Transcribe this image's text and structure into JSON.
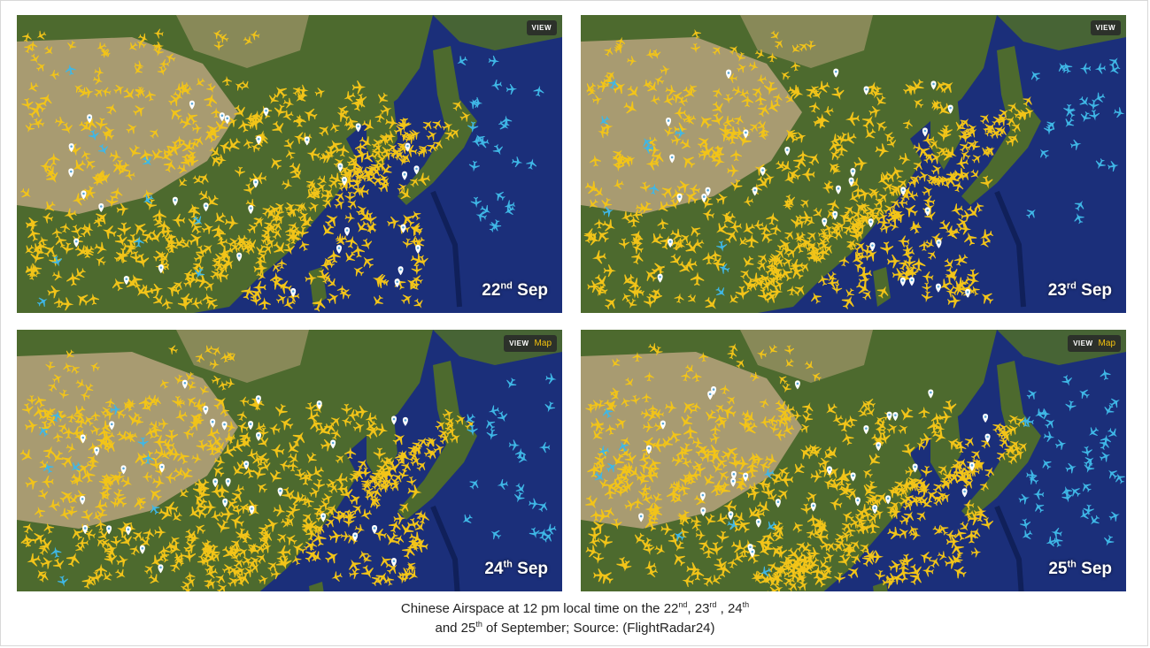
{
  "panels": [
    {
      "date_day": "22",
      "date_suffix": "nd",
      "date_month": "Sep",
      "view_label": "VIEW",
      "map_label": ""
    },
    {
      "date_day": "23",
      "date_suffix": "rd",
      "date_month": "Sep",
      "view_label": "VIEW",
      "map_label": ""
    },
    {
      "date_day": "24",
      "date_suffix": "th",
      "date_month": "Sep",
      "view_label": "VIEW",
      "map_label": "Map"
    },
    {
      "date_day": "25",
      "date_suffix": "th",
      "date_month": "Sep",
      "view_label": "VIEW",
      "map_label": "Map"
    }
  ],
  "caption": {
    "line1_prefix": "Chinese Airspace at 12 pm local time on the 22",
    "sup_22": "nd",
    "sep_a": ", 23",
    "sup_23": "rd",
    "sep_b": " , 24",
    "sup_24": "th",
    "line2_prefix": "and 25",
    "sup_25": "th",
    "line2_suffix": " of September; Source: (FlightRadar24)"
  },
  "colors": {
    "ocean": "#1b2f7a",
    "land_desert": "#b9a37c",
    "land_green": "#4d6a2e",
    "plane_yellow": "#f2c419",
    "plane_blue": "#3fb7e6",
    "pin": "#ffffff"
  },
  "icons": {
    "aircraft": "plane-icon",
    "airport": "location-pin-icon"
  }
}
